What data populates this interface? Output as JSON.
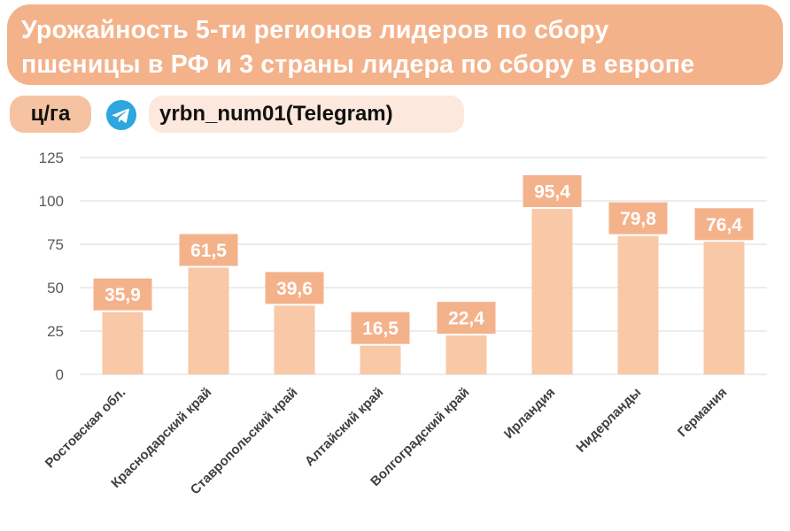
{
  "header": {
    "title": "Урожайность 5-ти регионов лидеров по сбору\nпшеницы в РФ и 3 страны лидера по сбору в европе",
    "unit_label": "ц/га",
    "source_label": "yrbn_num01(Telegram)",
    "source_icon": "telegram-icon"
  },
  "colors": {
    "title_bg": "#f4b28b",
    "bar": "#f8c8a7",
    "label_bg": "#f4b28b",
    "label_text": "#ffffff",
    "grid": "#d9d9d9",
    "telegram": "#2ea6df"
  },
  "chart_data": {
    "type": "bar",
    "categories": [
      "Ростовская обл.",
      "Краснодарский край",
      "Ставропольский край",
      "Алтайский край",
      "Волгоградский край",
      "Ирландия",
      "Нидерланды",
      "Германия"
    ],
    "values": [
      35.9,
      61.5,
      39.6,
      16.5,
      22.4,
      95.4,
      79.8,
      76.4
    ],
    "data_labels": [
      "35,9",
      "61,5",
      "39,6",
      "16,5",
      "22,4",
      "95,4",
      "79,8",
      "76,4"
    ],
    "y_ticks": [
      0,
      25,
      50,
      75,
      100,
      125
    ],
    "ylim": [
      0,
      125
    ],
    "grid": true,
    "xlabel": "",
    "ylabel": ""
  }
}
